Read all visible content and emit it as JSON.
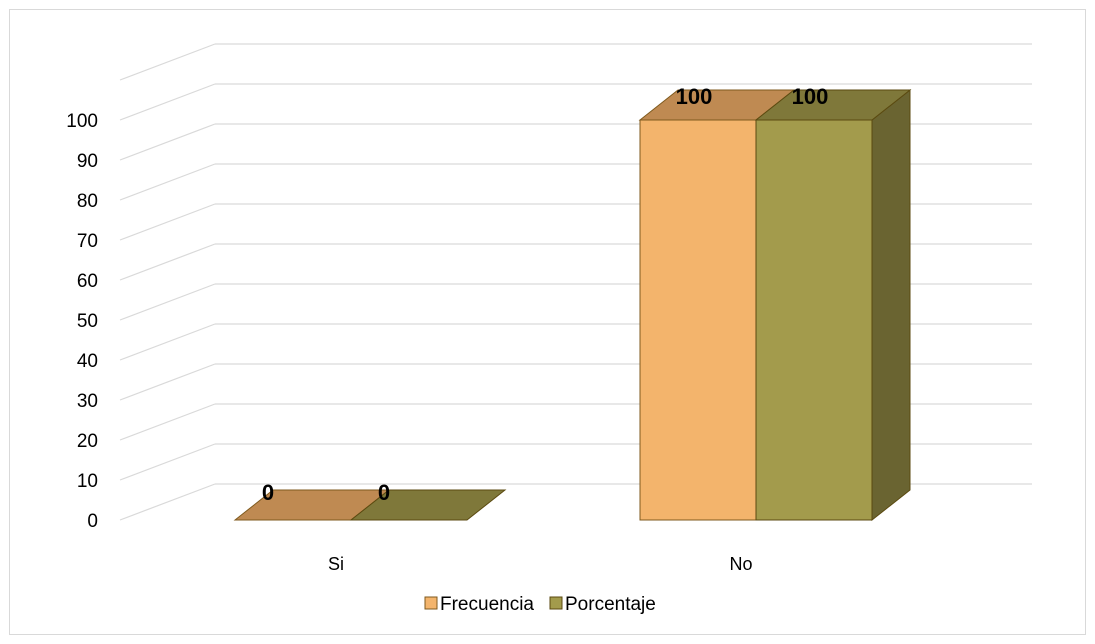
{
  "chart_data": {
    "type": "bar",
    "categories": [
      "Si",
      "No"
    ],
    "series": [
      {
        "name": "Frecuencia",
        "values": [
          0,
          100
        ],
        "color": "#f3b46c",
        "top_color": "#bf8a52",
        "side_color": "#8a6232",
        "stroke": "#7f5a1e"
      },
      {
        "name": "Porcentaje",
        "values": [
          0,
          100
        ],
        "color": "#a39b4c",
        "top_color": "#7f783a",
        "side_color": "#6a6431",
        "stroke": "#5b4a10"
      }
    ],
    "y_ticks": [
      0,
      10,
      20,
      30,
      40,
      50,
      60,
      70,
      80,
      90,
      100
    ],
    "ylim": [
      0,
      110
    ],
    "grid": true,
    "legend_position": "bottom",
    "data_labels": true,
    "title": "",
    "xlabel": "",
    "ylabel": ""
  }
}
